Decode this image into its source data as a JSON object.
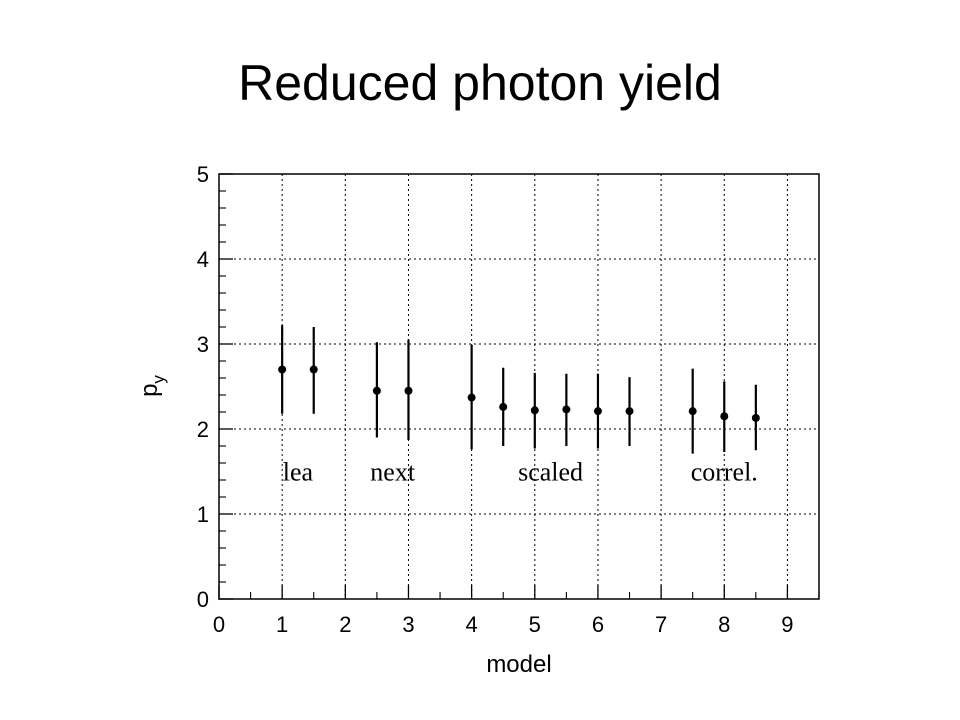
{
  "slide": {
    "title": "Reduced photon yield"
  },
  "chart_data": {
    "type": "scatter",
    "title": "",
    "xlabel": "model",
    "ylabel_main": "p",
    "ylabel_sub": "y",
    "xlim": [
      0,
      9.5
    ],
    "ylim": [
      0,
      5
    ],
    "x_ticks": [
      0,
      1,
      2,
      3,
      4,
      5,
      6,
      7,
      8,
      9
    ],
    "y_ticks": [
      0,
      1,
      2,
      3,
      4,
      5
    ],
    "grid": true,
    "series": [
      {
        "points": [
          {
            "x": 1.0,
            "y": 2.7,
            "y_low": 2.18,
            "y_high": 3.22
          },
          {
            "x": 1.5,
            "y": 2.7,
            "y_low": 2.18,
            "y_high": 3.2
          },
          {
            "x": 2.5,
            "y": 2.45,
            "y_low": 1.9,
            "y_high": 3.02
          },
          {
            "x": 3.0,
            "y": 2.45,
            "y_low": 1.87,
            "y_high": 3.05
          },
          {
            "x": 4.0,
            "y": 2.37,
            "y_low": 1.76,
            "y_high": 2.99
          },
          {
            "x": 4.5,
            "y": 2.26,
            "y_low": 1.8,
            "y_high": 2.72
          },
          {
            "x": 5.0,
            "y": 2.22,
            "y_low": 1.77,
            "y_high": 2.66
          },
          {
            "x": 5.5,
            "y": 2.23,
            "y_low": 1.8,
            "y_high": 2.65
          },
          {
            "x": 6.0,
            "y": 2.21,
            "y_low": 1.77,
            "y_high": 2.65
          },
          {
            "x": 6.5,
            "y": 2.21,
            "y_low": 1.8,
            "y_high": 2.61
          },
          {
            "x": 7.5,
            "y": 2.21,
            "y_low": 1.71,
            "y_high": 2.71
          },
          {
            "x": 8.0,
            "y": 2.15,
            "y_low": 1.73,
            "y_high": 2.56
          },
          {
            "x": 8.5,
            "y": 2.13,
            "y_low": 1.75,
            "y_high": 2.52
          }
        ]
      }
    ],
    "annotations": [
      {
        "text": "lea",
        "x": 1.25,
        "y": 1.5
      },
      {
        "text": "next",
        "x": 2.75,
        "y": 1.5
      },
      {
        "text": "scaled",
        "x": 5.25,
        "y": 1.5
      },
      {
        "text": "correl.",
        "x": 8.0,
        "y": 1.5
      }
    ]
  }
}
